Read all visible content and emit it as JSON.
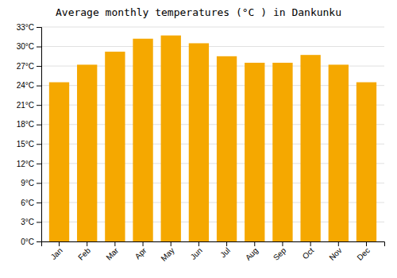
{
  "chart_data": {
    "type": "bar",
    "title": "Average monthly temperatures (°C ) in Dankunku",
    "categories": [
      "Jan",
      "Feb",
      "Mar",
      "Apr",
      "May",
      "Jun",
      "Jul",
      "Aug",
      "Sep",
      "Oct",
      "Nov",
      "Dec"
    ],
    "values": [
      24.5,
      27.2,
      29.2,
      31.2,
      31.7,
      30.5,
      28.5,
      27.5,
      27.5,
      28.7,
      27.2,
      24.5
    ],
    "color": "#F5A800",
    "ylim": [
      0,
      33
    ],
    "yticks": [
      {
        "value": 0,
        "label": "0°C"
      },
      {
        "value": 3,
        "label": "3°C"
      },
      {
        "value": 6,
        "label": "6°C"
      },
      {
        "value": 9,
        "label": "9°C"
      },
      {
        "value": 12,
        "label": "12°C"
      },
      {
        "value": 15,
        "label": "15°C"
      },
      {
        "value": 18,
        "label": "18°C"
      },
      {
        "value": 21,
        "label": "21°C"
      },
      {
        "value": 24,
        "label": "24°C"
      },
      {
        "value": 27,
        "label": "27°C"
      },
      {
        "value": 30,
        "label": "30°C"
      },
      {
        "value": 33,
        "label": "33°C"
      }
    ],
    "grid": true
  }
}
